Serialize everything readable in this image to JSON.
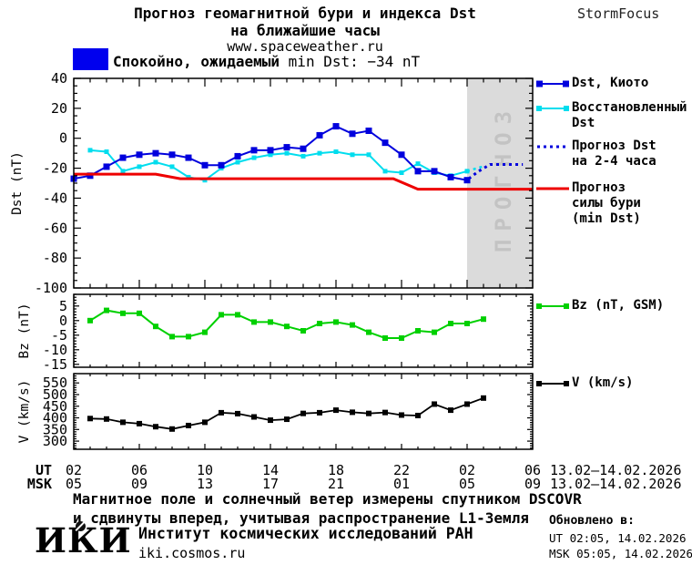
{
  "header": {
    "title_line1": "Прогноз геомагнитной бури и индекса Dst",
    "title_line2": "на ближайшие часы",
    "website": "www.spaceweather.ru",
    "brand": "StormFocus"
  },
  "status": {
    "text_ru": "Спокойно, ожидаемый",
    "text_en": "min Dst: −34 nT",
    "box_color": "#0000EE"
  },
  "colors": {
    "dst_kyoto": "#0000DD",
    "dst_restored": "#00DDEE",
    "forecast_dst": "#0000DD",
    "storm_force": "#EE0000",
    "bz": "#00D000",
    "v": "#000000",
    "band": "#DBDBDB",
    "watermark": "#C3C3C3"
  },
  "chart_data": [
    {
      "type": "line",
      "panel": "dst",
      "ylabel": "Dst (nT)",
      "ylim": [
        -100,
        40
      ],
      "ytick_values": [
        40,
        20,
        0,
        -20,
        -40,
        -60,
        -80,
        -100
      ],
      "ytick_labels": [
        "40",
        "20",
        "0",
        "-20",
        "-40",
        "-60",
        "-80",
        "-100"
      ],
      "ytick_minor_step": 5,
      "xlim": [
        2,
        30
      ],
      "xtick_major_step": 4,
      "xtick_minor_step": 1,
      "forecast_band": {
        "from": 26,
        "to": 30,
        "watermark": "ПРОГНОЗ"
      },
      "series": [
        {
          "name": "Восстановленный Dst",
          "color": "#00DDEE",
          "style": "solid",
          "width": 2,
          "marker": 5,
          "in_legend": true,
          "x": [
            3,
            4,
            5,
            6,
            7,
            8,
            9,
            10,
            11,
            12,
            13,
            14,
            15,
            16,
            17,
            18,
            19,
            20,
            21,
            22,
            23,
            24,
            25,
            26
          ],
          "y": [
            -8,
            -9,
            -22,
            -19,
            -16,
            -19,
            -26,
            -28,
            -20,
            -16,
            -13,
            -11,
            -10,
            -12,
            -10,
            -9,
            -11,
            -11,
            -22,
            -23,
            -17,
            -23,
            -25,
            -22
          ]
        },
        {
          "name": "Восстановленный Dst (прогноз)",
          "color": "#00DDEE",
          "style": "dotted",
          "width": 2.5,
          "marker": 0,
          "in_legend": false,
          "x": [
            26,
            26.6,
            27.1
          ],
          "y": [
            -22,
            -20,
            -18.5
          ]
        },
        {
          "name": "Dst, Киото",
          "color": "#0000DD",
          "style": "solid",
          "width": 2,
          "marker": 7,
          "in_legend": true,
          "x": [
            2,
            3,
            4,
            5,
            6,
            7,
            8,
            9,
            10,
            11,
            12,
            13,
            14,
            15,
            16,
            17,
            18,
            19,
            20,
            21,
            22,
            23,
            24,
            25,
            26
          ],
          "y": [
            -27,
            -25,
            -19,
            -13,
            -11,
            -10,
            -11,
            -13,
            -18,
            -18,
            -12,
            -8,
            -8,
            -6,
            -7,
            2,
            8,
            3,
            5,
            -3,
            -11,
            -22,
            -22,
            -26,
            -28
          ]
        },
        {
          "name": "Прогноз Dst на 2-4 часа",
          "color": "#0000DD",
          "style": "dotted",
          "width": 3,
          "marker": 0,
          "in_legend": true,
          "x": [
            26.1,
            26.7,
            27.4,
            29.4
          ],
          "y": [
            -27,
            -22,
            -17.5,
            -17.5
          ]
        },
        {
          "name": "Прогноз силы бури (min Dst)",
          "color": "#EE0000",
          "style": "solid",
          "width": 3,
          "marker": 0,
          "in_legend": true,
          "x": [
            2,
            7,
            8.5,
            21.5,
            23,
            30
          ],
          "y": [
            -24,
            -24,
            -27,
            -27,
            -34,
            -34
          ]
        }
      ],
      "legend": [
        {
          "lines": [
            "Dst, Киото"
          ],
          "marker": "line-squares",
          "color_key": "dst_kyoto"
        },
        {
          "lines": [
            "Восстановленный",
            "Dst"
          ],
          "marker": "line-squares",
          "color_key": "dst_restored"
        },
        {
          "lines": [
            "Прогноз Dst",
            "на 2-4 часа"
          ],
          "marker": "dotted",
          "color_key": "forecast_dst"
        },
        {
          "lines": [
            "Прогноз",
            "силы бури",
            "(min Dst)"
          ],
          "marker": "line",
          "color_key": "storm_force"
        }
      ]
    },
    {
      "type": "line",
      "panel": "bz",
      "ylabel": "Bz (nT)",
      "ylim": [
        -16,
        9
      ],
      "ytick_values": [
        5,
        0,
        -5,
        -10,
        -15
      ],
      "ytick_labels": [
        "5",
        "0",
        "-5",
        "-10",
        "-15"
      ],
      "ytick_minor_step": 1,
      "xlim": [
        2,
        30
      ],
      "xtick_major_step": 4,
      "xtick_minor_step": 1,
      "series": [
        {
          "name": "Bz (nT, GSM)",
          "color": "#00D000",
          "style": "solid",
          "width": 2,
          "marker": 6,
          "in_legend": true,
          "x": [
            3,
            4,
            5,
            6,
            7,
            8,
            9,
            10,
            11,
            12,
            13,
            14,
            15,
            16,
            17,
            18,
            19,
            20,
            21,
            22,
            23,
            24,
            25,
            26,
            27
          ],
          "y": [
            0,
            3.5,
            2.5,
            2.5,
            -2,
            -5.5,
            -5.5,
            -4,
            2,
            2,
            -0.5,
            -0.5,
            -2,
            -3.5,
            -1,
            -0.5,
            -1.5,
            -4,
            -6,
            -6,
            -3.5,
            -4,
            -1,
            -1,
            0.5
          ]
        }
      ],
      "legend": [
        {
          "lines": [
            "Bz (nT, GSM)"
          ],
          "marker": "line-squares",
          "color_key": "bz"
        }
      ]
    },
    {
      "type": "line",
      "panel": "v",
      "ylabel": "V (km/s)",
      "ylim": [
        265,
        590
      ],
      "ytick_values": [
        550,
        500,
        450,
        400,
        350,
        300
      ],
      "ytick_labels": [
        "550",
        "500",
        "450",
        "400",
        "350",
        "300"
      ],
      "ytick_minor_step": 10,
      "xlim": [
        2,
        30
      ],
      "xtick_major_step": 4,
      "xtick_minor_step": 1,
      "series": [
        {
          "name": "V (km/s)",
          "color": "#000000",
          "style": "solid",
          "width": 1.8,
          "marker": 6,
          "in_legend": true,
          "x": [
            3,
            4,
            5,
            6,
            7,
            8,
            9,
            10,
            11,
            12,
            13,
            14,
            15,
            16,
            17,
            18,
            19,
            20,
            21,
            22,
            23,
            24,
            25,
            26,
            27
          ],
          "y": [
            397,
            395,
            381,
            375,
            362,
            352,
            367,
            381,
            422,
            418,
            404,
            390,
            394,
            419,
            422,
            433,
            424,
            419,
            423,
            412,
            410,
            459,
            433,
            459,
            485
          ]
        }
      ],
      "legend": [
        {
          "lines": [
            "V (km/s)"
          ],
          "marker": "line-squares",
          "color_key": "v"
        }
      ]
    }
  ],
  "xaxis": {
    "ut_label": "UT",
    "msk_label": "MSK",
    "ut_ticks": [
      "02",
      "06",
      "10",
      "14",
      "18",
      "22",
      "02",
      "06"
    ],
    "msk_ticks": [
      "05",
      "09",
      "13",
      "17",
      "21",
      "01",
      "05",
      "09"
    ],
    "ut_date": "13.02–14.02.2026",
    "msk_date": "13.02–14.02.2026"
  },
  "footnote": {
    "line1": "Магнитное поле и солнечный ветер измерены спутником DSCOVR",
    "line2": "и сдвинуты вперед, учитывая распространение L1-Земля"
  },
  "footer": {
    "logo": "ИКИ",
    "institute": "Институт космических исследований РАН",
    "site": "iki.cosmos.ru",
    "updated_label": "Обновлено в:",
    "updated_ut": "UT  02:05, 14.02.2026",
    "updated_msk": "MSK 05:05, 14.02.2026"
  }
}
